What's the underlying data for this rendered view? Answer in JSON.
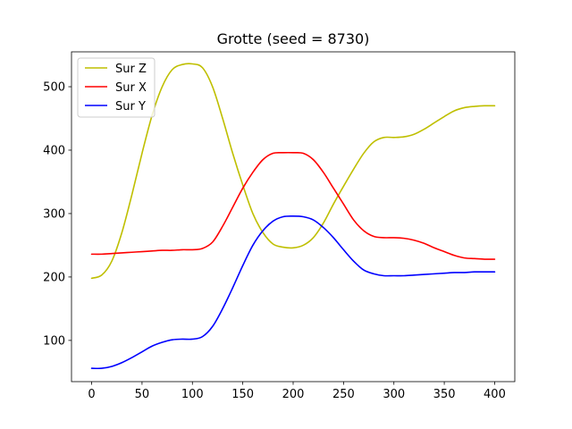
{
  "chart_data": {
    "type": "line",
    "title": "Grotte (seed = 8730)",
    "xlabel": "",
    "ylabel": "",
    "xlim": [
      -20,
      420
    ],
    "ylim": [
      35,
      555
    ],
    "xticks": [
      0,
      50,
      100,
      150,
      200,
      250,
      300,
      350,
      400
    ],
    "yticks": [
      100,
      200,
      300,
      400,
      500
    ],
    "grid": false,
    "legend_position": "upper-left",
    "series": [
      {
        "name": "Sur Z",
        "color": "#bfbf00",
        "points": [
          [
            0,
            198
          ],
          [
            10,
            203
          ],
          [
            20,
            225
          ],
          [
            30,
            270
          ],
          [
            40,
            330
          ],
          [
            50,
            395
          ],
          [
            60,
            455
          ],
          [
            70,
            500
          ],
          [
            80,
            527
          ],
          [
            90,
            535
          ],
          [
            100,
            536
          ],
          [
            110,
            530
          ],
          [
            120,
            500
          ],
          [
            130,
            450
          ],
          [
            140,
            395
          ],
          [
            150,
            345
          ],
          [
            160,
            300
          ],
          [
            170,
            270
          ],
          [
            180,
            252
          ],
          [
            190,
            247
          ],
          [
            200,
            246
          ],
          [
            210,
            250
          ],
          [
            220,
            262
          ],
          [
            230,
            285
          ],
          [
            240,
            315
          ],
          [
            250,
            343
          ],
          [
            260,
            370
          ],
          [
            270,
            395
          ],
          [
            280,
            413
          ],
          [
            290,
            420
          ],
          [
            300,
            420
          ],
          [
            310,
            421
          ],
          [
            320,
            425
          ],
          [
            330,
            433
          ],
          [
            340,
            443
          ],
          [
            350,
            453
          ],
          [
            360,
            462
          ],
          [
            370,
            467
          ],
          [
            380,
            469
          ],
          [
            390,
            470
          ],
          [
            400,
            470
          ]
        ]
      },
      {
        "name": "Sur X",
        "color": "#ff0000",
        "points": [
          [
            0,
            236
          ],
          [
            10,
            236
          ],
          [
            20,
            237
          ],
          [
            30,
            238
          ],
          [
            40,
            239
          ],
          [
            50,
            240
          ],
          [
            60,
            241
          ],
          [
            70,
            242
          ],
          [
            80,
            242
          ],
          [
            90,
            243
          ],
          [
            100,
            243
          ],
          [
            110,
            245
          ],
          [
            120,
            255
          ],
          [
            130,
            280
          ],
          [
            140,
            310
          ],
          [
            150,
            340
          ],
          [
            160,
            365
          ],
          [
            170,
            385
          ],
          [
            180,
            395
          ],
          [
            190,
            396
          ],
          [
            200,
            396
          ],
          [
            210,
            395
          ],
          [
            220,
            385
          ],
          [
            230,
            365
          ],
          [
            240,
            340
          ],
          [
            250,
            315
          ],
          [
            260,
            290
          ],
          [
            270,
            273
          ],
          [
            280,
            264
          ],
          [
            290,
            262
          ],
          [
            300,
            262
          ],
          [
            310,
            261
          ],
          [
            320,
            258
          ],
          [
            330,
            253
          ],
          [
            340,
            246
          ],
          [
            350,
            240
          ],
          [
            360,
            234
          ],
          [
            370,
            230
          ],
          [
            380,
            229
          ],
          [
            390,
            228
          ],
          [
            400,
            228
          ]
        ]
      },
      {
        "name": "Sur Y",
        "color": "#0000ff",
        "points": [
          [
            0,
            56
          ],
          [
            10,
            56
          ],
          [
            20,
            59
          ],
          [
            30,
            65
          ],
          [
            40,
            73
          ],
          [
            50,
            82
          ],
          [
            60,
            91
          ],
          [
            70,
            97
          ],
          [
            80,
            101
          ],
          [
            90,
            102
          ],
          [
            100,
            102
          ],
          [
            110,
            106
          ],
          [
            120,
            122
          ],
          [
            130,
            150
          ],
          [
            140,
            183
          ],
          [
            150,
            218
          ],
          [
            160,
            250
          ],
          [
            170,
            273
          ],
          [
            180,
            288
          ],
          [
            190,
            295
          ],
          [
            200,
            296
          ],
          [
            210,
            295
          ],
          [
            220,
            290
          ],
          [
            230,
            278
          ],
          [
            240,
            262
          ],
          [
            250,
            243
          ],
          [
            260,
            225
          ],
          [
            270,
            211
          ],
          [
            280,
            205
          ],
          [
            290,
            202
          ],
          [
            300,
            202
          ],
          [
            310,
            202
          ],
          [
            320,
            203
          ],
          [
            330,
            204
          ],
          [
            340,
            205
          ],
          [
            350,
            206
          ],
          [
            360,
            207
          ],
          [
            370,
            207
          ],
          [
            380,
            208
          ],
          [
            390,
            208
          ],
          [
            400,
            208
          ]
        ]
      }
    ]
  }
}
